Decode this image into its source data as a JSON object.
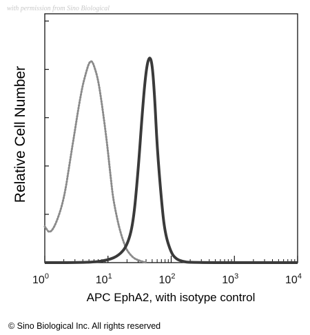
{
  "watermark": "with permission from Sino Biological",
  "copyright": "© Sino Biological Inc. All rights reserved",
  "chart_data": {
    "type": "line",
    "title": "",
    "xlabel": "APC EphA2, with isotype control",
    "ylabel": "Relative Cell Number",
    "xscale": "log",
    "xlim": [
      1,
      10000
    ],
    "ylim": [
      0,
      1
    ],
    "grid": false,
    "legend": "none",
    "x_ticks": [
      {
        "value": 1,
        "base": "10",
        "exp": "0"
      },
      {
        "value": 10,
        "base": "10",
        "exp": "1"
      },
      {
        "value": 100,
        "base": "10",
        "exp": "2"
      },
      {
        "value": 1000,
        "base": "10",
        "exp": "3"
      },
      {
        "value": 10000,
        "base": "10",
        "exp": "4"
      }
    ],
    "series": [
      {
        "style": "dotted",
        "color": "#8a8a8a",
        "x": [
          1,
          1.2,
          1.5,
          2,
          2.5,
          3,
          3.5,
          4,
          4.5,
          5,
          5.5,
          6,
          7,
          8,
          9,
          10,
          11,
          12,
          14,
          16,
          18,
          20,
          25,
          30,
          40
        ],
        "y": [
          0.15,
          0.12,
          0.16,
          0.26,
          0.42,
          0.55,
          0.66,
          0.74,
          0.79,
          0.83,
          0.84,
          0.82,
          0.76,
          0.66,
          0.56,
          0.46,
          0.36,
          0.27,
          0.18,
          0.12,
          0.08,
          0.05,
          0.02,
          0.01,
          0.0
        ]
      },
      {
        "style": "solid",
        "color": "#3a3a3a",
        "x": [
          1,
          5,
          10,
          15,
          20,
          25,
          30,
          35,
          40,
          45,
          50,
          55,
          60,
          70,
          80,
          100,
          120,
          150,
          200,
          10000
        ],
        "y": [
          0.0,
          0.0,
          0.01,
          0.03,
          0.07,
          0.16,
          0.38,
          0.63,
          0.8,
          0.86,
          0.83,
          0.68,
          0.48,
          0.26,
          0.12,
          0.04,
          0.015,
          0.005,
          0.0,
          0.0
        ]
      }
    ]
  }
}
